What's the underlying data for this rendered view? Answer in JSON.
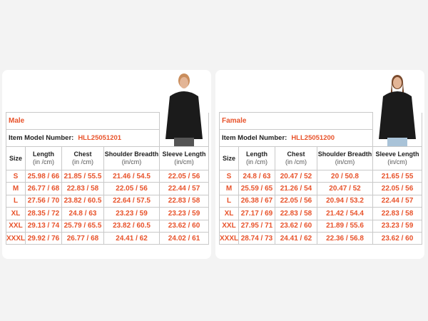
{
  "columns": {
    "size": "Size",
    "length": "Length",
    "chest": "Chest",
    "shoulder": "Shoulder Breadth",
    "sleeve": "Sleeve Length",
    "unit_spaced": "(in /cm)",
    "unit": "(in/cm)"
  },
  "model_label": "Item Model Number:",
  "charts": [
    {
      "title": "Male",
      "model": "HLL25051201",
      "photo": "man-in-black-hoodie",
      "rows": [
        [
          "S",
          "25.98 / 66",
          "21.85 / 55.5",
          "21.46 / 54.5",
          "22.05 / 56"
        ],
        [
          "M",
          "26.77 / 68",
          "22.83 / 58",
          "22.05 / 56",
          "22.44 / 57"
        ],
        [
          "L",
          "27.56 / 70",
          "23.82 / 60.5",
          "22.64 / 57.5",
          "22.83 / 58"
        ],
        [
          "XL",
          "28.35 / 72",
          "24.8 / 63",
          "23.23 / 59",
          "23.23 / 59"
        ],
        [
          "XXL",
          "29.13 / 74",
          "25.79 / 65.5",
          "23.82 / 60.5",
          "23.62 / 60"
        ],
        [
          "XXXL",
          "29.92 / 76",
          "26.77 / 68",
          "24.41 / 62",
          "24.02 / 61"
        ]
      ]
    },
    {
      "title": "Famale",
      "model": "HLL25051200",
      "photo": "woman-in-black-hoodie",
      "rows": [
        [
          "S",
          "24.8 / 63",
          "20.47 / 52",
          "20 / 50.8",
          "21.65 / 55"
        ],
        [
          "M",
          "25.59 / 65",
          "21.26 / 54",
          "20.47 / 52",
          "22.05 / 56"
        ],
        [
          "L",
          "26.38 / 67",
          "22.05 / 56",
          "20.94 / 53.2",
          "22.44 / 57"
        ],
        [
          "XL",
          "27.17 / 69",
          "22.83 / 58",
          "21.42 / 54.4",
          "22.83 / 58"
        ],
        [
          "XXL",
          "27.95 / 71",
          "23.62 / 60",
          "21.89 / 55.6",
          "23.23 / 59"
        ],
        [
          "XXXL",
          "28.74 / 73",
          "24.41 / 62",
          "22.36 / 56.8",
          "23.62 / 60"
        ]
      ]
    }
  ],
  "colors": {
    "accent": "#e8532b",
    "border": "#c9c9c9"
  }
}
